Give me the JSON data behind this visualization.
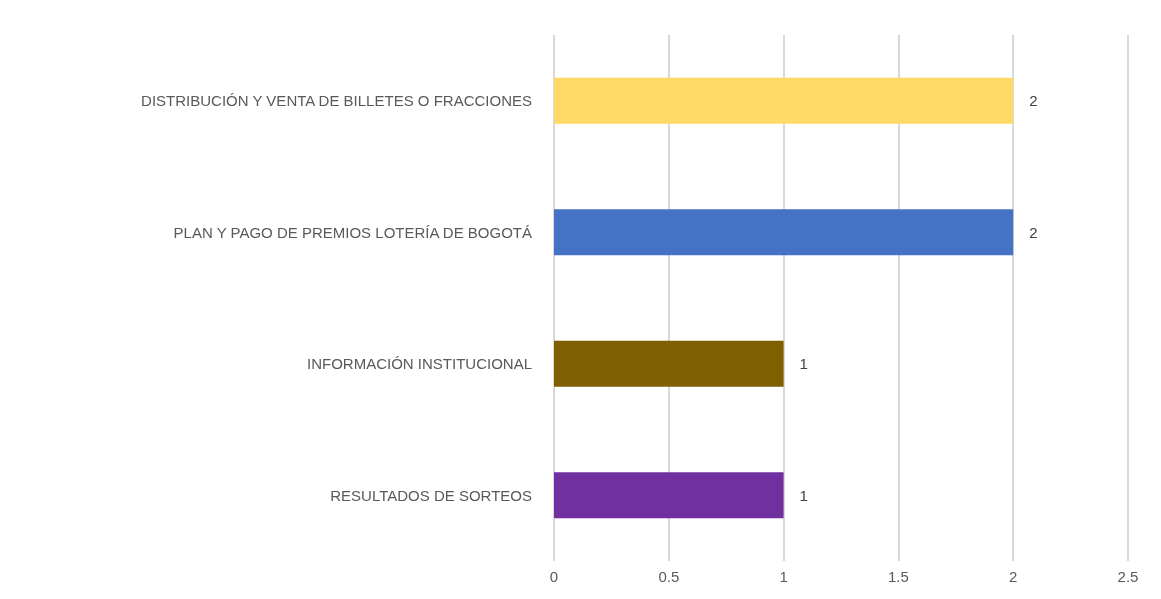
{
  "chart_data": {
    "type": "bar",
    "orientation": "horizontal",
    "categories": [
      "DISTRIBUCIÓN Y VENTA DE BILLETES O FRACCIONES",
      "PLAN Y PAGO DE PREMIOS LOTERÍA DE BOGOTÁ",
      "INFORMACIÓN INSTITUCIONAL",
      "RESULTADOS DE SORTEOS"
    ],
    "values": [
      2,
      2,
      1,
      1
    ],
    "colors": [
      "#ffd966",
      "#4472c4",
      "#7f6000",
      "#7030a0"
    ],
    "xlim": [
      0,
      2.5
    ],
    "xticks": [
      0,
      0.5,
      1,
      1.5,
      2,
      2.5
    ],
    "grid": "x",
    "data_labels": true
  }
}
